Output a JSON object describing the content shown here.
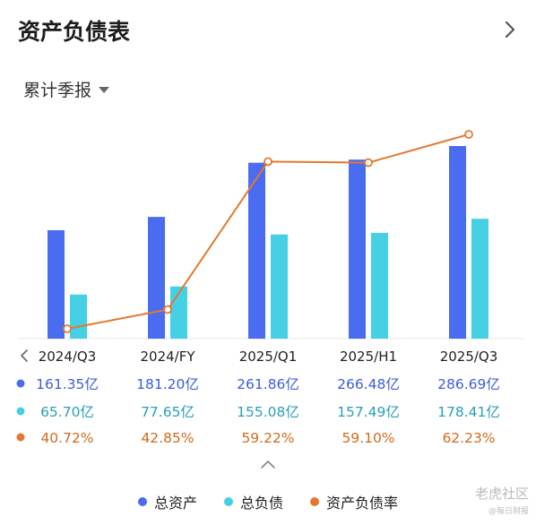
{
  "header": {
    "title": "资产负债表"
  },
  "period_selector": {
    "label": "累计季报"
  },
  "chart_data": {
    "type": "bar",
    "categories": [
      "2024/Q3",
      "2024/FY",
      "2025/Q1",
      "2025/H1",
      "2025/Q3"
    ],
    "series": [
      {
        "name": "总资产",
        "type": "bar",
        "color": "#4a6cf0",
        "values": [
          161.35,
          181.2,
          261.86,
          266.48,
          286.69
        ],
        "labels": [
          "161.35亿",
          "181.20亿",
          "261.86亿",
          "266.48亿",
          "286.69亿"
        ]
      },
      {
        "name": "总负债",
        "type": "bar",
        "color": "#45d0e5",
        "values": [
          65.7,
          77.65,
          155.08,
          157.49,
          178.41
        ],
        "labels": [
          "65.70亿",
          "77.65亿",
          "155.08亿",
          "157.49亿",
          "178.41亿"
        ]
      },
      {
        "name": "资产负债率",
        "type": "line",
        "color": "#e2792e",
        "values": [
          40.72,
          42.85,
          59.22,
          59.1,
          62.23
        ],
        "labels": [
          "40.72%",
          "42.85%",
          "59.22%",
          "59.10%",
          "62.23%"
        ]
      }
    ],
    "legend_position": "bottom"
  },
  "watermark": {
    "line1": "老虎社区",
    "line2": "@每日财报"
  }
}
